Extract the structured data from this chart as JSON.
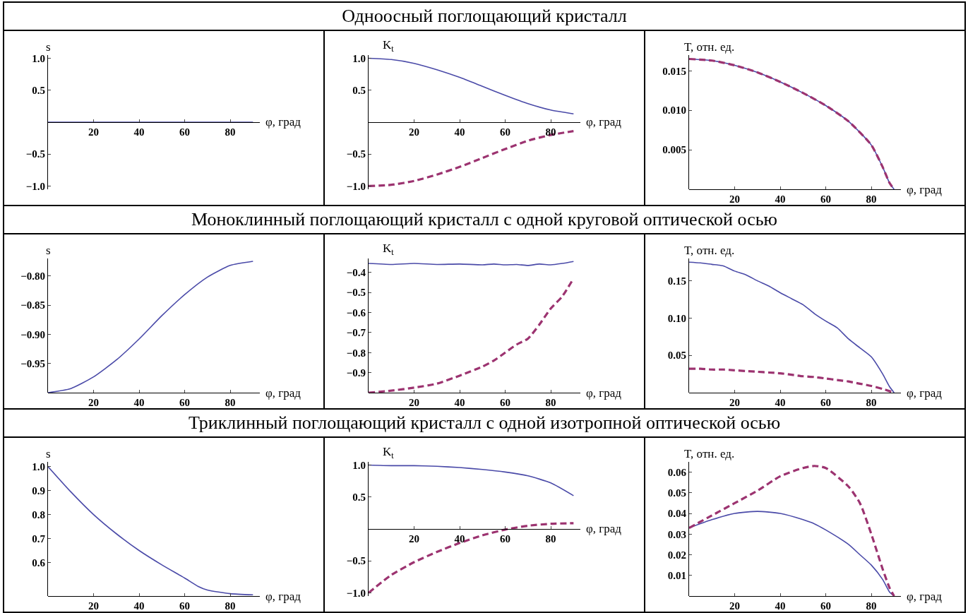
{
  "chart_data": [
    {
      "type": "other",
      "title": "Одноосный поглощающий кристалл"
    },
    {
      "type": "line",
      "xlabel": "φ, град",
      "ylabel": "s",
      "xlim": [
        0,
        93
      ],
      "xticks": [
        20,
        40,
        60,
        80
      ],
      "ylim": [
        -1.05,
        1.05
      ],
      "yticks": [
        {
          "value": -1,
          "label": "−1.0"
        },
        {
          "value": -0.5,
          "label": "−0.5"
        },
        {
          "value": 0.5,
          "label": "0.5"
        },
        {
          "value": 1,
          "label": "1.0"
        }
      ],
      "grid": false,
      "marker": "none",
      "x": [
        0,
        10,
        20,
        30,
        40,
        50,
        60,
        70,
        80,
        90
      ],
      "series": [
        {
          "color": "#4a4aa8",
          "line_style": "solid",
          "values": [
            0,
            0,
            0,
            0,
            0,
            0,
            0,
            0,
            0,
            0
          ]
        }
      ]
    },
    {
      "type": "line",
      "xlabel": "φ, град",
      "ylabel": "K$_{t}$",
      "xlim": [
        0,
        93
      ],
      "xticks": [
        20,
        40,
        60,
        80
      ],
      "ylim": [
        -1.05,
        1.05
      ],
      "yticks": [
        {
          "value": -1,
          "label": "−1.0"
        },
        {
          "value": -0.5,
          "label": "−0.5"
        },
        {
          "value": 0.5,
          "label": "0.5"
        },
        {
          "value": 1,
          "label": "1.0"
        }
      ],
      "grid": false,
      "marker": "none",
      "x": [
        0,
        10,
        20,
        30,
        40,
        50,
        60,
        70,
        80,
        90
      ],
      "series": [
        {
          "color": "#4a4aa8",
          "line_style": "solid",
          "values": [
            1.0,
            0.98,
            0.92,
            0.82,
            0.7,
            0.56,
            0.42,
            0.29,
            0.19,
            0.13
          ]
        },
        {
          "color": "#9c3370",
          "line_style": "dashed",
          "values": [
            -1.0,
            -0.98,
            -0.92,
            -0.82,
            -0.7,
            -0.56,
            -0.42,
            -0.29,
            -0.2,
            -0.14
          ]
        }
      ]
    },
    {
      "type": "line",
      "xlabel": "φ, град",
      "ylabel": "T, отн. ед.",
      "xlim": [
        0,
        93
      ],
      "xticks": [
        20,
        40,
        60,
        80
      ],
      "ylim": [
        0,
        0.017
      ],
      "yticks": [
        {
          "value": 0.005,
          "label": "0.005"
        },
        {
          "value": 0.01,
          "label": "0.010"
        },
        {
          "value": 0.015,
          "label": "0.015"
        }
      ],
      "grid": false,
      "marker": "none",
      "x": [
        0,
        10,
        20,
        30,
        40,
        50,
        60,
        70,
        80,
        85,
        88,
        90
      ],
      "series": [
        {
          "color": "#4a4aa8",
          "line_style": "solid",
          "values": [
            0.0165,
            0.0163,
            0.0157,
            0.0148,
            0.0136,
            0.0122,
            0.0106,
            0.0086,
            0.0056,
            0.0028,
            0.0008,
            0
          ]
        },
        {
          "color": "#9c3370",
          "line_style": "dashed",
          "values": [
            0.0165,
            0.0163,
            0.0157,
            0.0148,
            0.0136,
            0.0122,
            0.0106,
            0.0086,
            0.0056,
            0.0028,
            0.0008,
            0
          ]
        }
      ]
    },
    {
      "type": "other",
      "title": "Моноклинный поглощающий кристалл с одной круговой оптической осью"
    },
    {
      "type": "line",
      "xlabel": "φ, град",
      "ylabel": "s",
      "xlim": [
        0,
        93
      ],
      "xticks": [
        20,
        40,
        60,
        80
      ],
      "ylim": [
        -1.0,
        -0.77
      ],
      "yticks": [
        {
          "value": -0.95,
          "label": "−0.95"
        },
        {
          "value": -0.9,
          "label": "−0.90"
        },
        {
          "value": -0.85,
          "label": "−0.85"
        },
        {
          "value": -0.8,
          "label": "−0.80"
        }
      ],
      "grid": false,
      "marker": "none",
      "x": [
        0,
        10,
        20,
        30,
        40,
        50,
        60,
        70,
        80,
        90
      ],
      "series": [
        {
          "color": "#4a4aa8",
          "line_style": "solid",
          "values": [
            -1.0,
            -0.993,
            -0.973,
            -0.944,
            -0.908,
            -0.868,
            -0.832,
            -0.802,
            -0.782,
            -0.775
          ]
        }
      ]
    },
    {
      "type": "line",
      "xlabel": "φ, град",
      "ylabel": "K$_{t}$",
      "xlim": [
        0,
        93
      ],
      "xticks": [
        20,
        40,
        60,
        80
      ],
      "ylim": [
        -1.0,
        -0.33
      ],
      "yticks": [
        {
          "value": -0.9,
          "label": "−0.9"
        },
        {
          "value": -0.8,
          "label": "−0.8"
        },
        {
          "value": -0.7,
          "label": "−0.7"
        },
        {
          "value": -0.6,
          "label": "−0.6"
        },
        {
          "value": -0.5,
          "label": "−0.5"
        },
        {
          "value": -0.4,
          "label": "−0.4"
        }
      ],
      "grid": false,
      "marker": "none",
      "x": [
        0,
        10,
        20,
        30,
        40,
        50,
        55,
        60,
        65,
        70,
        75,
        80,
        85,
        90
      ],
      "series": [
        {
          "color": "#4a4aa8",
          "line_style": "solid",
          "values": [
            -0.355,
            -0.36,
            -0.355,
            -0.36,
            -0.358,
            -0.362,
            -0.358,
            -0.362,
            -0.36,
            -0.365,
            -0.358,
            -0.362,
            -0.355,
            -0.345
          ]
        },
        {
          "color": "#9c3370",
          "line_style": "dashed",
          "values": [
            -1.0,
            -0.99,
            -0.975,
            -0.955,
            -0.915,
            -0.87,
            -0.84,
            -0.8,
            -0.76,
            -0.73,
            -0.66,
            -0.58,
            -0.52,
            -0.43
          ]
        }
      ]
    },
    {
      "type": "line",
      "xlabel": "φ, град",
      "ylabel": "T, отн. ед.",
      "xlim": [
        0,
        93
      ],
      "xticks": [
        20,
        40,
        60,
        80
      ],
      "ylim": [
        0,
        0.18
      ],
      "yticks": [
        {
          "value": 0.05,
          "label": "0.05"
        },
        {
          "value": 0.1,
          "label": "0.10"
        },
        {
          "value": 0.15,
          "label": "0.15"
        }
      ],
      "grid": false,
      "marker": "none",
      "x": [
        0,
        5,
        10,
        15,
        20,
        25,
        30,
        35,
        40,
        45,
        50,
        55,
        60,
        65,
        70,
        75,
        80,
        85,
        88,
        90
      ],
      "series": [
        {
          "color": "#4a4aa8",
          "line_style": "solid",
          "values": [
            0.175,
            0.174,
            0.172,
            0.17,
            0.163,
            0.158,
            0.15,
            0.143,
            0.134,
            0.126,
            0.118,
            0.106,
            0.096,
            0.087,
            0.072,
            0.06,
            0.048,
            0.025,
            0.008,
            0
          ]
        },
        {
          "color": "#9c3370",
          "line_style": "dashed",
          "values": [
            0.032,
            0.032,
            0.031,
            0.031,
            0.03,
            0.029,
            0.028,
            0.027,
            0.026,
            0.024,
            0.022,
            0.021,
            0.019,
            0.017,
            0.015,
            0.012,
            0.009,
            0.005,
            0.002,
            0
          ]
        }
      ]
    },
    {
      "type": "other",
      "title": "Триклинный поглощающий кристалл с одной изотропной оптической осью"
    },
    {
      "type": "line",
      "xlabel": "φ, град",
      "ylabel": "s",
      "xlim": [
        0,
        93
      ],
      "xticks": [
        20,
        40,
        60,
        80
      ],
      "ylim": [
        0.46,
        1.02
      ],
      "yticks": [
        {
          "value": 0.6,
          "label": "0.6"
        },
        {
          "value": 0.7,
          "label": "0.7"
        },
        {
          "value": 0.8,
          "label": "0.8"
        },
        {
          "value": 0.9,
          "label": "0.9"
        },
        {
          "value": 1.0,
          "label": "1.0"
        }
      ],
      "grid": false,
      "marker": "none",
      "x": [
        0,
        10,
        20,
        30,
        40,
        50,
        60,
        66,
        70,
        80,
        90
      ],
      "series": [
        {
          "color": "#4a4aa8",
          "line_style": "solid",
          "values": [
            1.0,
            0.895,
            0.8,
            0.72,
            0.65,
            0.59,
            0.535,
            0.5,
            0.485,
            0.47,
            0.465
          ]
        }
      ]
    },
    {
      "type": "line",
      "xlabel": "φ, град",
      "ylabel": "K$_{t}$",
      "xlim": [
        0,
        93
      ],
      "xticks": [
        20,
        40,
        60,
        80
      ],
      "ylim": [
        -1.05,
        1.05
      ],
      "yticks": [
        {
          "value": -1,
          "label": "−1.0"
        },
        {
          "value": -0.5,
          "label": "−0.5"
        },
        {
          "value": 0.5,
          "label": "0.5"
        },
        {
          "value": 1,
          "label": "1.0"
        }
      ],
      "grid": false,
      "marker": "none",
      "x": [
        0,
        10,
        20,
        30,
        40,
        50,
        60,
        70,
        80,
        90
      ],
      "series": [
        {
          "color": "#4a4aa8",
          "line_style": "solid",
          "values": [
            1.0,
            0.99,
            0.99,
            0.98,
            0.96,
            0.93,
            0.89,
            0.83,
            0.72,
            0.52
          ]
        },
        {
          "color": "#9c3370",
          "line_style": "dashed",
          "values": [
            -1.0,
            -0.72,
            -0.52,
            -0.36,
            -0.22,
            -0.1,
            -0.01,
            0.05,
            0.08,
            0.09
          ]
        }
      ]
    },
    {
      "type": "line",
      "xlabel": "φ, град",
      "ylabel": "T, отн. ед.",
      "xlim": [
        0,
        93
      ],
      "xticks": [
        20,
        40,
        60,
        80
      ],
      "ylim": [
        0,
        0.065
      ],
      "yticks": [
        {
          "value": 0.01,
          "label": "0.01"
        },
        {
          "value": 0.02,
          "label": "0.02"
        },
        {
          "value": 0.03,
          "label": "0.03"
        },
        {
          "value": 0.04,
          "label": "0.04"
        },
        {
          "value": 0.05,
          "label": "0.05"
        },
        {
          "value": 0.06,
          "label": "0.06"
        }
      ],
      "grid": false,
      "marker": "none",
      "x": [
        0,
        10,
        20,
        30,
        40,
        50,
        55,
        60,
        70,
        75,
        80,
        85,
        88,
        90
      ],
      "series": [
        {
          "color": "#4a4aa8",
          "line_style": "solid",
          "values": [
            0.033,
            0.037,
            0.04,
            0.041,
            0.04,
            0.037,
            0.035,
            0.032,
            0.025,
            0.02,
            0.015,
            0.008,
            0.002,
            0
          ]
        },
        {
          "color": "#9c3370",
          "line_style": "dashed",
          "values": [
            0.033,
            0.039,
            0.045,
            0.051,
            0.058,
            0.062,
            0.063,
            0.062,
            0.053,
            0.045,
            0.03,
            0.013,
            0.004,
            0
          ]
        }
      ]
    }
  ]
}
